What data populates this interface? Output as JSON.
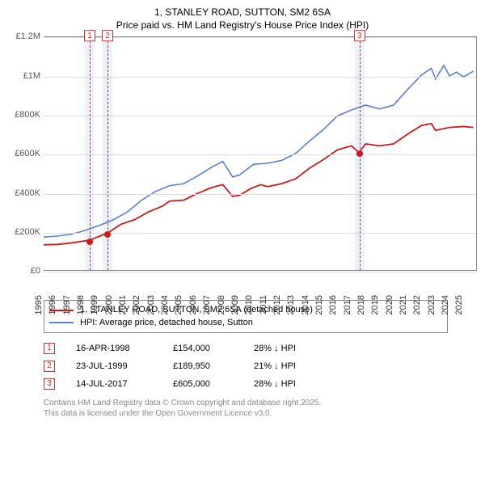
{
  "title_line1": "1, STANLEY ROAD, SUTTON, SM2 6SA",
  "title_line2": "Price paid vs. HM Land Registry's House Price Index (HPI)",
  "chart": {
    "type": "line",
    "background_color": "#ffffff",
    "grid_color": "#dddddd",
    "axis_color": "#888888",
    "shade_color": "rgba(100,150,230,0.12)",
    "vdash_color": "#d03030",
    "y": {
      "min": 0,
      "max": 1200000,
      "ticks": [
        0,
        200000,
        400000,
        600000,
        800000,
        1000000,
        1200000
      ],
      "labels": [
        "£0",
        "£200K",
        "£400K",
        "£600K",
        "£800K",
        "£1M",
        "£1.2M"
      ]
    },
    "x": {
      "min": 1995,
      "max": 2025.9,
      "ticks": [
        1995,
        1996,
        1997,
        1998,
        1999,
        2000,
        2001,
        2002,
        2003,
        2004,
        2005,
        2006,
        2007,
        2008,
        2009,
        2010,
        2011,
        2012,
        2013,
        2014,
        2015,
        2016,
        2017,
        2018,
        2019,
        2020,
        2021,
        2022,
        2023,
        2024,
        2025
      ]
    },
    "shade_ranges": [
      [
        1998.0,
        1998.6
      ],
      [
        1999.2,
        1999.9
      ],
      [
        2017.2,
        2017.9
      ]
    ],
    "marker_x": [
      1998.29,
      1999.56,
      2017.53
    ],
    "series": [
      {
        "name": "1, STANLEY ROAD, SUTTON, SM2 6SA (detached house)",
        "color": "#d11919",
        "width": 1.8,
        "points": [
          [
            1995,
            130000
          ],
          [
            1996,
            132000
          ],
          [
            1997,
            140000
          ],
          [
            1998.29,
            154000
          ],
          [
            1999,
            175000
          ],
          [
            1999.56,
            189950
          ],
          [
            2000.5,
            235000
          ],
          [
            2001.5,
            260000
          ],
          [
            2002.5,
            300000
          ],
          [
            2003.5,
            330000
          ],
          [
            2004,
            355000
          ],
          [
            2005,
            360000
          ],
          [
            2006,
            395000
          ],
          [
            2007,
            425000
          ],
          [
            2007.8,
            440000
          ],
          [
            2008.5,
            380000
          ],
          [
            2009,
            385000
          ],
          [
            2009.8,
            420000
          ],
          [
            2010.5,
            440000
          ],
          [
            2011,
            430000
          ],
          [
            2012,
            445000
          ],
          [
            2013,
            470000
          ],
          [
            2014,
            525000
          ],
          [
            2015,
            570000
          ],
          [
            2016,
            620000
          ],
          [
            2017,
            640000
          ],
          [
            2017.53,
            605000
          ],
          [
            2018,
            650000
          ],
          [
            2019,
            640000
          ],
          [
            2020,
            650000
          ],
          [
            2021,
            700000
          ],
          [
            2022,
            745000
          ],
          [
            2022.7,
            755000
          ],
          [
            2023,
            720000
          ],
          [
            2024,
            735000
          ],
          [
            2025,
            740000
          ],
          [
            2025.7,
            735000
          ]
        ]
      },
      {
        "name": "HPI: Average price, detached house, Sutton",
        "color": "#5a7fd1",
        "width": 1.6,
        "points": [
          [
            1995,
            170000
          ],
          [
            1996,
            175000
          ],
          [
            1997,
            185000
          ],
          [
            1998,
            205000
          ],
          [
            1999,
            230000
          ],
          [
            2000,
            260000
          ],
          [
            2001,
            300000
          ],
          [
            2002,
            360000
          ],
          [
            2003,
            405000
          ],
          [
            2004,
            435000
          ],
          [
            2005,
            445000
          ],
          [
            2006,
            485000
          ],
          [
            2007,
            530000
          ],
          [
            2007.8,
            560000
          ],
          [
            2008.5,
            480000
          ],
          [
            2009,
            490000
          ],
          [
            2010,
            545000
          ],
          [
            2011,
            550000
          ],
          [
            2012,
            565000
          ],
          [
            2013,
            600000
          ],
          [
            2014,
            665000
          ],
          [
            2015,
            725000
          ],
          [
            2016,
            795000
          ],
          [
            2017,
            825000
          ],
          [
            2018,
            850000
          ],
          [
            2019,
            830000
          ],
          [
            2020,
            850000
          ],
          [
            2021,
            930000
          ],
          [
            2022,
            1005000
          ],
          [
            2022.7,
            1040000
          ],
          [
            2023,
            985000
          ],
          [
            2023.6,
            1055000
          ],
          [
            2024,
            1000000
          ],
          [
            2024.5,
            1020000
          ],
          [
            2025,
            995000
          ],
          [
            2025.7,
            1025000
          ]
        ]
      }
    ],
    "price_markers": [
      {
        "x": 1998.29,
        "y": 154000
      },
      {
        "x": 1999.56,
        "y": 189950
      },
      {
        "x": 2017.53,
        "y": 605000
      }
    ]
  },
  "legend": {
    "items": [
      {
        "color": "#d11919",
        "label": "1, STANLEY ROAD, SUTTON, SM2 6SA (detached house)"
      },
      {
        "color": "#5a7fd1",
        "label": "HPI: Average price, detached house, Sutton"
      }
    ]
  },
  "table": {
    "rows": [
      {
        "n": "1",
        "date": "16-APR-1998",
        "price": "£154,000",
        "diff": "28% ↓ HPI"
      },
      {
        "n": "2",
        "date": "23-JUL-1999",
        "price": "£189,950",
        "diff": "21% ↓ HPI"
      },
      {
        "n": "3",
        "date": "14-JUL-2017",
        "price": "£605,000",
        "diff": "28% ↓ HPI"
      }
    ]
  },
  "footer_line1": "Contains HM Land Registry data © Crown copyright and database right 2025.",
  "footer_line2": "This data is licensed under the Open Government Licence v3.0."
}
